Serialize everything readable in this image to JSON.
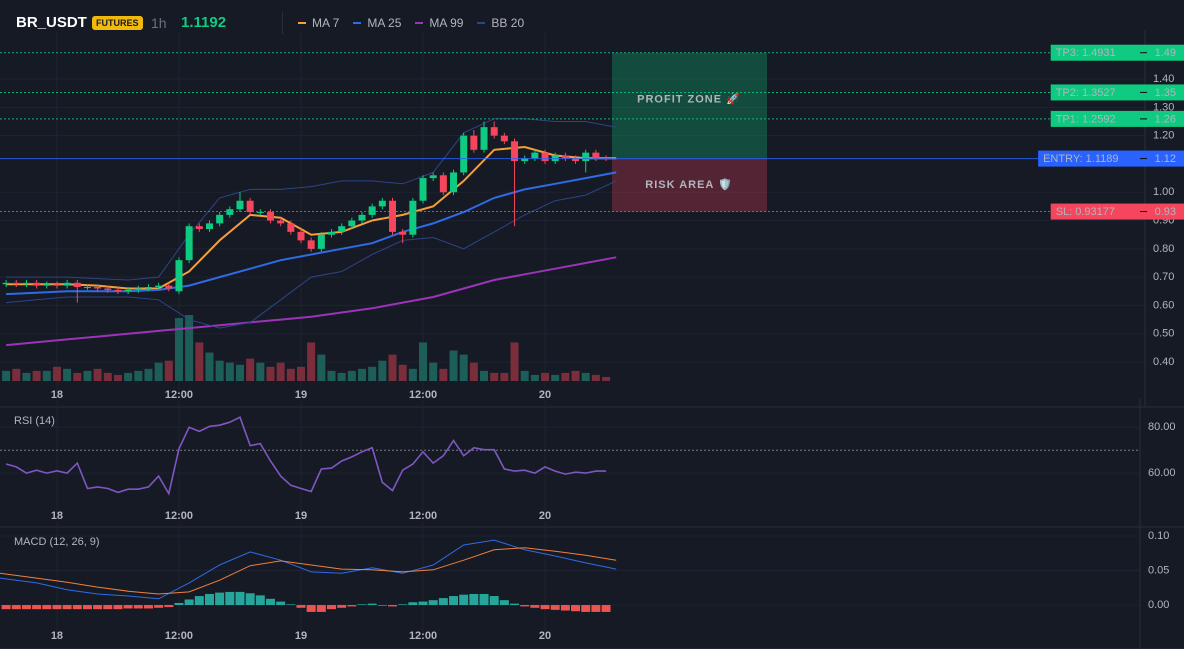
{
  "header": {
    "symbol": "BR_USDT",
    "badge": "FUTURES",
    "interval": "1h",
    "price": "1.1192"
  },
  "chart_data": [
    {
      "type": "candlestick",
      "x": [
        -5,
        -4,
        -3,
        -2,
        -1,
        0,
        1,
        2,
        3,
        4,
        5,
        6,
        7,
        8,
        9,
        10,
        11,
        12,
        13,
        14,
        15,
        16,
        17,
        18,
        19,
        20,
        21,
        22,
        23,
        24,
        25,
        26,
        27,
        28,
        29,
        30,
        31,
        32,
        33,
        34,
        35,
        36,
        37,
        38,
        39,
        40,
        41,
        42,
        43,
        44,
        45,
        46,
        47,
        48,
        49,
        50,
        51,
        52,
        53,
        54
      ],
      "open": [
        0.675,
        0.68,
        0.675,
        0.68,
        0.67,
        0.675,
        0.67,
        0.68,
        0.665,
        0.665,
        0.66,
        0.655,
        0.65,
        0.655,
        0.66,
        0.665,
        0.67,
        0.65,
        0.76,
        0.88,
        0.87,
        0.89,
        0.92,
        0.94,
        0.97,
        0.93,
        0.93,
        0.9,
        0.89,
        0.86,
        0.83,
        0.8,
        0.85,
        0.86,
        0.88,
        0.9,
        0.92,
        0.95,
        0.97,
        0.86,
        0.85,
        0.97,
        1.05,
        1.06,
        1.0,
        1.07,
        1.2,
        1.15,
        1.23,
        1.2,
        1.18,
        1.11,
        1.12,
        1.14,
        1.11,
        1.13,
        1.12,
        1.11,
        1.14,
        1.12
      ],
      "high": [
        0.69,
        0.69,
        0.69,
        0.69,
        0.685,
        0.685,
        0.69,
        0.69,
        0.675,
        0.675,
        0.67,
        0.665,
        0.665,
        0.67,
        0.675,
        0.68,
        0.68,
        0.77,
        0.89,
        0.89,
        0.9,
        0.93,
        0.95,
        1.0,
        0.98,
        0.94,
        0.94,
        0.91,
        0.9,
        0.87,
        0.84,
        0.86,
        0.87,
        0.89,
        0.91,
        0.93,
        0.96,
        0.98,
        0.98,
        0.87,
        0.98,
        1.06,
        1.07,
        1.07,
        1.08,
        1.21,
        1.22,
        1.25,
        1.25,
        1.21,
        1.19,
        1.13,
        1.15,
        1.15,
        1.14,
        1.14,
        1.13,
        1.15,
        1.15,
        1.13
      ],
      "low": [
        0.665,
        0.665,
        0.665,
        0.66,
        0.66,
        0.66,
        0.66,
        0.61,
        0.655,
        0.65,
        0.645,
        0.64,
        0.64,
        0.645,
        0.65,
        0.655,
        0.65,
        0.64,
        0.75,
        0.86,
        0.86,
        0.88,
        0.91,
        0.93,
        0.92,
        0.92,
        0.89,
        0.88,
        0.85,
        0.82,
        0.79,
        0.79,
        0.84,
        0.85,
        0.87,
        0.89,
        0.91,
        0.94,
        0.85,
        0.82,
        0.84,
        0.96,
        1.04,
        0.99,
        0.99,
        1.06,
        1.14,
        1.14,
        1.19,
        1.17,
        0.88,
        1.1,
        1.11,
        1.1,
        1.1,
        1.11,
        1.1,
        1.07,
        1.11,
        1.11
      ],
      "close": [
        0.68,
        0.675,
        0.68,
        0.67,
        0.675,
        0.67,
        0.68,
        0.665,
        0.665,
        0.66,
        0.655,
        0.65,
        0.655,
        0.66,
        0.665,
        0.67,
        0.66,
        0.76,
        0.88,
        0.87,
        0.89,
        0.92,
        0.94,
        0.97,
        0.93,
        0.93,
        0.9,
        0.89,
        0.86,
        0.83,
        0.8,
        0.85,
        0.86,
        0.88,
        0.9,
        0.92,
        0.95,
        0.97,
        0.86,
        0.85,
        0.97,
        1.05,
        1.06,
        1.0,
        1.07,
        1.2,
        1.15,
        1.23,
        1.2,
        1.18,
        1.11,
        1.12,
        1.14,
        1.11,
        1.13,
        1.12,
        1.11,
        1.14,
        1.12,
        1.1192
      ],
      "volume": [
        10,
        12,
        8,
        10,
        10,
        14,
        12,
        8,
        10,
        12,
        8,
        6,
        8,
        10,
        12,
        18,
        20,
        62,
        65,
        38,
        28,
        20,
        18,
        16,
        22,
        18,
        14,
        18,
        12,
        14,
        38,
        26,
        10,
        8,
        10,
        12,
        14,
        20,
        26,
        16,
        12,
        38,
        18,
        12,
        30,
        26,
        18,
        10,
        8,
        8,
        38,
        10,
        6,
        8,
        6,
        8,
        10,
        8,
        6,
        4
      ],
      "up_color": "#0ecb81",
      "down_color": "#f6465d",
      "volume_up_color": "#1d5e58",
      "volume_down_color": "#7a2d3a",
      "series": [
        {
          "name": "MA 7",
          "color": "#f5a03a",
          "x": [
            -5,
            -2,
            1,
            4,
            7,
            10,
            13,
            16,
            19,
            22,
            25,
            28,
            31,
            34,
            37,
            40,
            43,
            46,
            49,
            52,
            55
          ],
          "values": [
            0.675,
            0.675,
            0.675,
            0.67,
            0.66,
            0.66,
            0.72,
            0.83,
            0.92,
            0.91,
            0.85,
            0.86,
            0.9,
            0.92,
            0.95,
            1.04,
            1.15,
            1.16,
            1.13,
            1.12,
            1.12
          ]
        },
        {
          "name": "MA 25",
          "color": "#2f6be6",
          "x": [
            -5,
            -2,
            1,
            4,
            7,
            10,
            13,
            16,
            19,
            22,
            25,
            28,
            31,
            34,
            37,
            40,
            43,
            46,
            49,
            52,
            55
          ],
          "values": [
            0.64,
            0.645,
            0.65,
            0.65,
            0.65,
            0.655,
            0.67,
            0.7,
            0.73,
            0.76,
            0.78,
            0.8,
            0.82,
            0.86,
            0.89,
            0.93,
            0.98,
            1.01,
            1.03,
            1.05,
            1.07
          ]
        },
        {
          "name": "MA 99",
          "color": "#9c33b8",
          "x": [
            -5,
            -2,
            1,
            4,
            7,
            10,
            13,
            16,
            19,
            22,
            25,
            28,
            31,
            34,
            37,
            40,
            43,
            46,
            49,
            52,
            55
          ],
          "values": [
            0.46,
            0.47,
            0.48,
            0.49,
            0.5,
            0.51,
            0.52,
            0.53,
            0.54,
            0.55,
            0.56,
            0.575,
            0.59,
            0.61,
            0.63,
            0.66,
            0.69,
            0.71,
            0.73,
            0.75,
            0.77
          ]
        },
        {
          "name": "BB 20",
          "color": "#2d4588",
          "x": [
            -5,
            -2,
            1,
            4,
            7,
            10,
            13,
            16,
            19,
            22,
            25,
            28,
            31,
            34,
            37,
            40,
            43,
            46,
            49,
            52,
            55
          ],
          "upper": [
            0.7,
            0.7,
            0.7,
            0.695,
            0.69,
            0.7,
            0.85,
            0.98,
            1.01,
            1.01,
            1.02,
            1.04,
            1.04,
            1.03,
            1.07,
            1.21,
            1.26,
            1.26,
            1.25,
            1.25,
            1.23
          ],
          "lower": [
            0.61,
            0.62,
            0.63,
            0.63,
            0.63,
            0.62,
            0.55,
            0.52,
            0.54,
            0.62,
            0.7,
            0.72,
            0.78,
            0.83,
            0.84,
            0.8,
            0.86,
            0.92,
            0.97,
            0.99,
            1.04
          ]
        }
      ],
      "levels": [
        {
          "value": 1.4931,
          "label": "TP3: 1.4931",
          "axis_label": "1.49",
          "color": "#0ecb81",
          "style": "dotted"
        },
        {
          "value": 1.3527,
          "label": "TP2: 1.3527",
          "axis_label": "1.35",
          "color": "#0ecb81",
          "style": "dotted"
        },
        {
          "value": 1.2592,
          "label": "TP1: 1.2592",
          "axis_label": "1.26",
          "color": "#0ecb81",
          "style": "dotted"
        },
        {
          "value": 1.1189,
          "label": "ENTRY: 1.1189",
          "axis_label": "1.12",
          "color": "#2962ff",
          "style": "solid"
        },
        {
          "value": 0.93177,
          "label": "SL: 0.93177",
          "axis_label": "0.93",
          "color": "#f6465d",
          "style": "dotted"
        }
      ],
      "zones": [
        {
          "label": "PROFIT ZONE 🚀",
          "from": 1.4931,
          "to": 1.1189,
          "color": "#0ecb81"
        },
        {
          "label": "RISK AREA 🛡️",
          "from": 1.1189,
          "to": 0.93177,
          "color": "#f6465d"
        }
      ],
      "xlim": [
        -5.6,
        107
      ],
      "ylim": [
        0.333,
        1.538
      ],
      "xticks": [
        {
          "value": 0,
          "label": "18"
        },
        {
          "value": 12,
          "label": "12:00"
        },
        {
          "value": 24,
          "label": "19"
        },
        {
          "value": 36,
          "label": "12:00"
        },
        {
          "value": 48,
          "label": "20"
        }
      ],
      "yticks": [
        {
          "value": 0.4,
          "label": "0.40"
        },
        {
          "value": 0.5,
          "label": "0.50"
        },
        {
          "value": 0.6,
          "label": "0.60"
        },
        {
          "value": 0.7,
          "label": "0.70"
        },
        {
          "value": 0.8,
          "label": "0.80"
        },
        {
          "value": 0.9,
          "label": "0.90"
        },
        {
          "value": 1.0,
          "label": "1.00"
        },
        {
          "value": 1.2,
          "label": "1.20"
        },
        {
          "value": 1.3,
          "label": "1.30"
        },
        {
          "value": 1.4,
          "label": "1.40"
        }
      ],
      "grid": true
    },
    {
      "type": "line",
      "title": "RSI (14)",
      "color": "#7e57c2",
      "x": [
        -5,
        -4,
        -3,
        -2,
        -1,
        0,
        1,
        2,
        3,
        4,
        5,
        6,
        7,
        8,
        9,
        10,
        11,
        12,
        13,
        14,
        15,
        16,
        17,
        18,
        19,
        20,
        21,
        22,
        23,
        24,
        25,
        26,
        27,
        28,
        29,
        30,
        31,
        32,
        33,
        34,
        35,
        36,
        37,
        38,
        39,
        40,
        41,
        42,
        43,
        44,
        45,
        46,
        47,
        48,
        49,
        50,
        51,
        52,
        53,
        54
      ],
      "values": [
        64,
        62.7,
        60,
        61.3,
        60,
        61,
        60,
        64.4,
        53.3,
        54,
        53.3,
        51.6,
        53,
        53,
        54,
        58.7,
        51.1,
        70.7,
        80,
        78.2,
        80.4,
        80.9,
        82.2,
        84.4,
        72,
        72.9,
        65.3,
        58.7,
        54.7,
        53.3,
        52,
        61.8,
        62.2,
        65.3,
        67.1,
        69.3,
        71.1,
        56,
        52.4,
        61.3,
        64,
        69.3,
        64.4,
        67.6,
        74.2,
        67.6,
        71.1,
        70.2,
        70.2,
        61.8,
        60.9,
        61.3,
        60,
        62.7,
        60.9,
        59.6,
        60.4,
        60,
        60.9,
        60.9
      ],
      "reference_line": 70,
      "xlim": [
        -5.6,
        107
      ],
      "ylim": [
        38.7,
        88.4
      ],
      "xticks": [
        {
          "value": 0,
          "label": "18"
        },
        {
          "value": 12,
          "label": "12:00"
        },
        {
          "value": 24,
          "label": "19"
        },
        {
          "value": 36,
          "label": "12:00"
        },
        {
          "value": 48,
          "label": "20"
        }
      ],
      "yticks": [
        {
          "value": 60,
          "label": "60.00"
        },
        {
          "value": 80,
          "label": "80.00"
        }
      ],
      "grid": true
    },
    {
      "type": "macd",
      "title": "MACD (12, 26, 9)",
      "macd": {
        "color": "#2f6be6",
        "x": [
          -5.6,
          -2,
          1,
          4,
          7,
          10,
          13,
          16,
          19,
          22,
          25,
          28,
          31,
          34,
          37,
          40,
          43,
          46,
          49,
          52,
          55
        ],
        "values": [
          0.039,
          0.032,
          0.022,
          0.016,
          0.013,
          0.009,
          0.032,
          0.058,
          0.077,
          0.065,
          0.048,
          0.046,
          0.054,
          0.046,
          0.058,
          0.087,
          0.094,
          0.08,
          0.071,
          0.061,
          0.052
        ]
      },
      "signal": {
        "color": "#f0803c",
        "x": [
          -5.6,
          -2,
          1,
          4,
          7,
          10,
          13,
          16,
          19,
          22,
          25,
          28,
          31,
          34,
          37,
          40,
          43,
          46,
          49,
          52,
          55
        ],
        "values": [
          0.046,
          0.039,
          0.033,
          0.026,
          0.02,
          0.016,
          0.019,
          0.036,
          0.057,
          0.064,
          0.058,
          0.052,
          0.051,
          0.048,
          0.051,
          0.065,
          0.08,
          0.083,
          0.078,
          0.072,
          0.065
        ]
      },
      "histogram": {
        "up_color": "#26a69a",
        "down_color": "#ef5350",
        "x": [
          -5,
          -4,
          -3,
          -2,
          -1,
          0,
          1,
          2,
          3,
          4,
          5,
          6,
          7,
          8,
          9,
          10,
          11,
          12,
          13,
          14,
          15,
          16,
          17,
          18,
          19,
          20,
          21,
          22,
          23,
          24,
          25,
          26,
          27,
          28,
          29,
          30,
          31,
          32,
          33,
          34,
          35,
          36,
          37,
          38,
          39,
          40,
          41,
          42,
          43,
          44,
          45,
          46,
          47,
          48,
          49,
          50,
          51,
          52,
          53,
          54
        ],
        "values": [
          -0.006,
          -0.006,
          -0.006,
          -0.006,
          -0.006,
          -0.006,
          -0.006,
          -0.006,
          -0.006,
          -0.006,
          -0.006,
          -0.006,
          -0.005,
          -0.005,
          -0.005,
          -0.004,
          -0.003,
          0.003,
          0.008,
          0.013,
          0.016,
          0.018,
          0.019,
          0.019,
          0.017,
          0.014,
          0.009,
          0.005,
          0.001,
          -0.004,
          -0.01,
          -0.01,
          -0.006,
          -0.004,
          -0.002,
          0.001,
          0.002,
          -0.001,
          -0.002,
          0.001,
          0.004,
          0.005,
          0.007,
          0.01,
          0.013,
          0.015,
          0.016,
          0.016,
          0.013,
          0.007,
          0.002,
          -0.002,
          -0.004,
          -0.006,
          -0.007,
          -0.008,
          -0.009,
          -0.01,
          -0.01,
          -0.01
        ]
      },
      "xlim": [
        -5.6,
        107
      ],
      "ylim": [
        -0.0246,
        0.1087
      ],
      "xticks": [
        {
          "value": 0,
          "label": "18"
        },
        {
          "value": 12,
          "label": "12:00"
        },
        {
          "value": 24,
          "label": "19"
        },
        {
          "value": 36,
          "label": "12:00"
        },
        {
          "value": 48,
          "label": "20"
        }
      ],
      "yticks": [
        {
          "value": 0,
          "label": "0.00"
        },
        {
          "value": 0.05,
          "label": "0.05"
        },
        {
          "value": 0.1,
          "label": "0.10"
        }
      ],
      "grid": true
    }
  ]
}
